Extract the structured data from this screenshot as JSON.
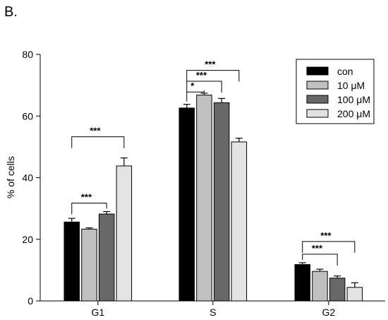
{
  "panel_label": "B.",
  "chart_data": {
    "type": "bar",
    "categories": [
      "G1",
      "S",
      "G2"
    ],
    "ylabel": "% of cells",
    "xlabel": "",
    "ylim": [
      0,
      80
    ],
    "yticks": [
      0,
      20,
      40,
      60,
      80
    ],
    "series": [
      {
        "name": "con",
        "color": "#000000",
        "values": [
          25.6,
          62.6,
          11.8
        ],
        "errors": [
          1.2,
          1.2,
          0.6
        ]
      },
      {
        "name": "10 μM",
        "color": "#c0c0c0",
        "values": [
          23.3,
          66.8,
          9.6
        ],
        "errors": [
          0.4,
          0.6,
          0.7
        ]
      },
      {
        "name": "100 μM",
        "color": "#686868",
        "values": [
          28.2,
          64.3,
          7.4
        ],
        "errors": [
          0.8,
          1.4,
          0.7
        ]
      },
      {
        "name": "200 μM",
        "color": "#e3e3e3",
        "values": [
          43.8,
          51.6,
          4.4
        ],
        "errors": [
          2.6,
          1.2,
          1.5
        ]
      }
    ],
    "significance": [
      {
        "category": 0,
        "from_series": 0,
        "to_series": 2,
        "label": "***"
      },
      {
        "category": 0,
        "from_series": 0,
        "to_series": 3,
        "label": "***"
      },
      {
        "category": 1,
        "from_series": 0,
        "to_series": 1,
        "label": "*"
      },
      {
        "category": 1,
        "from_series": 0,
        "to_series": 2,
        "label": "***"
      },
      {
        "category": 1,
        "from_series": 0,
        "to_series": 3,
        "label": "***"
      },
      {
        "category": 2,
        "from_series": 0,
        "to_series": 2,
        "label": "***"
      },
      {
        "category": 2,
        "from_series": 0,
        "to_series": 3,
        "label": "***"
      }
    ],
    "legend": {
      "position": "top-right"
    },
    "grid": false
  }
}
